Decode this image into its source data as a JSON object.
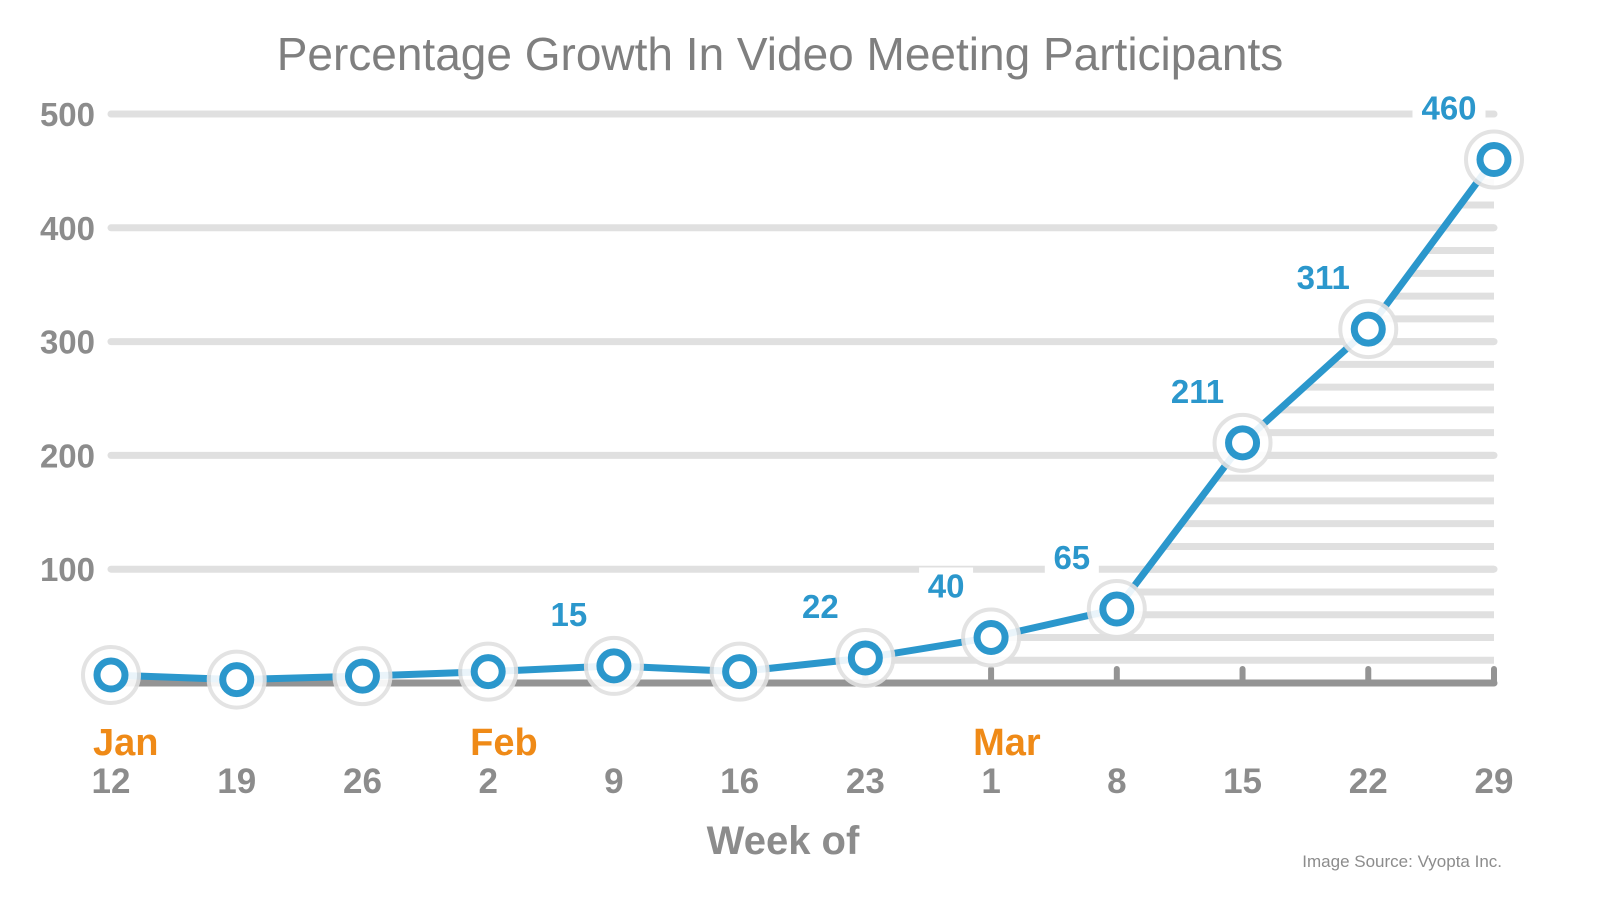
{
  "chart_data": {
    "type": "line",
    "title": "Percentage Growth In Video Meeting Participants",
    "xlabel": "Week of",
    "ylabel": "",
    "categories": [
      "12",
      "19",
      "26",
      "2",
      "9",
      "16",
      "23",
      "1",
      "8",
      "15",
      "22",
      "29"
    ],
    "months": [
      {
        "label": "Jan",
        "index": 0
      },
      {
        "label": "Feb",
        "index": 3
      },
      {
        "label": "Mar",
        "index": 7
      }
    ],
    "values": [
      7,
      3,
      6,
      10,
      15,
      10,
      22,
      40,
      65,
      211,
      311,
      460
    ],
    "data_labels": [
      null,
      null,
      null,
      null,
      "15",
      null,
      "22",
      "40",
      "65",
      "211",
      "311",
      "460"
    ],
    "yticks": [
      100,
      200,
      300,
      400,
      500
    ],
    "ylim": [
      0,
      500
    ],
    "grid": true,
    "minor_hatch_step": 20,
    "colors": {
      "line": "#2b97cc",
      "grid": "#e0e0e0",
      "axis": "#949494",
      "month": "#ef8a17",
      "text": "#8c8c8c"
    }
  },
  "source": "Image Source: Vyopta Inc."
}
